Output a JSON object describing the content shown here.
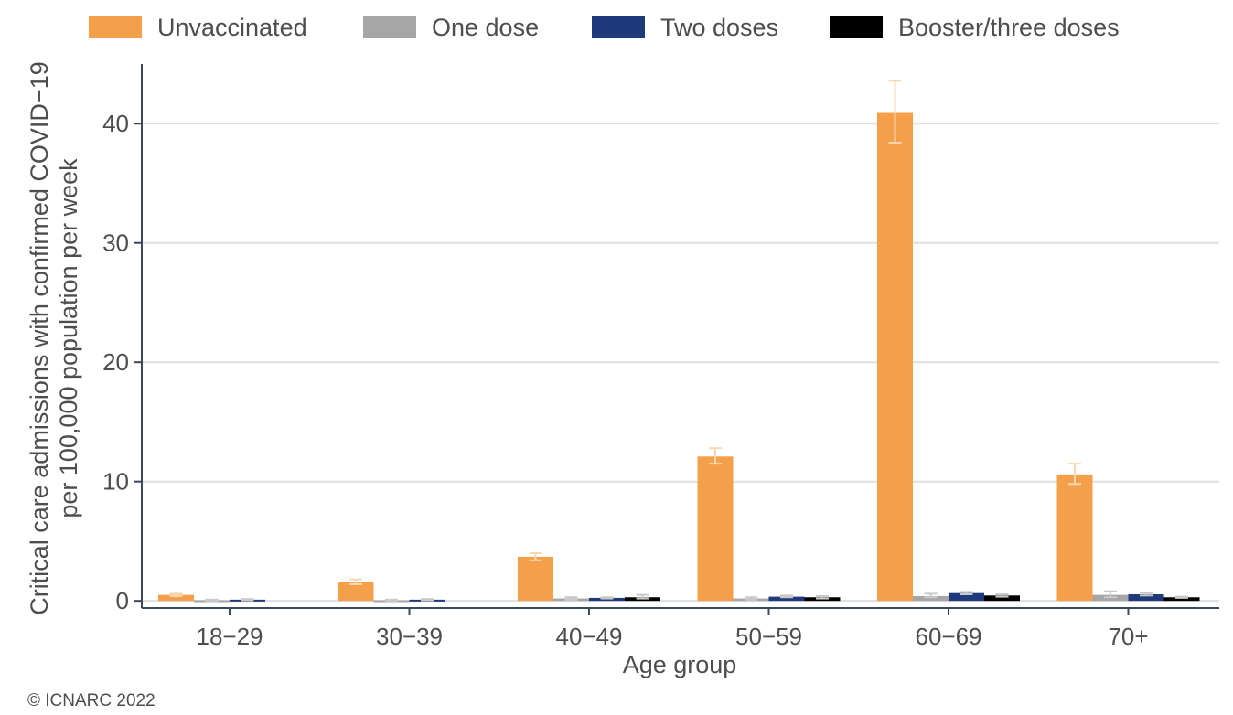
{
  "chart_data": {
    "type": "bar",
    "xlabel": "Age group",
    "ylabel_lines": [
      "Critical care admissions with confirmed COVID−19",
      "per 100,000 population per week"
    ],
    "categories": [
      "18−29",
      "30−39",
      "40−49",
      "50−59",
      "60−69",
      "70+"
    ],
    "series": [
      {
        "name": "Unvaccinated",
        "color": "#f4a04a",
        "values": [
          0.5,
          1.6,
          3.7,
          12.1,
          40.9,
          10.6
        ],
        "err_low": [
          0.4,
          1.4,
          3.4,
          11.5,
          38.4,
          9.8
        ],
        "err_high": [
          0.6,
          1.8,
          4.0,
          12.8,
          43.6,
          11.5
        ]
      },
      {
        "name": "One dose",
        "color": "#a6a6a6",
        "values": [
          0.05,
          0.05,
          0.2,
          0.2,
          0.4,
          0.5
        ],
        "err_low": [
          0.0,
          0.0,
          0.1,
          0.1,
          0.3,
          0.3
        ],
        "err_high": [
          0.1,
          0.1,
          0.3,
          0.3,
          0.6,
          0.8
        ]
      },
      {
        "name": "Two doses",
        "color": "#1f3a7a",
        "values": [
          0.1,
          0.1,
          0.25,
          0.35,
          0.65,
          0.55
        ],
        "err_low": [
          0.05,
          0.05,
          0.2,
          0.3,
          0.55,
          0.45
        ],
        "err_high": [
          0.15,
          0.15,
          0.3,
          0.45,
          0.75,
          0.65
        ]
      },
      {
        "name": "Booster/three doses",
        "color": "#000000",
        "values": [
          null,
          null,
          0.3,
          0.3,
          0.45,
          0.3
        ],
        "err_low": [
          null,
          null,
          0.2,
          0.2,
          0.35,
          0.25
        ],
        "err_high": [
          null,
          null,
          0.5,
          0.4,
          0.55,
          0.35
        ]
      }
    ],
    "yticks": [
      0,
      10,
      20,
      30,
      40
    ],
    "ylim": [
      -0.6,
      45
    ],
    "grid": true,
    "legend_position": "top"
  },
  "footer": {
    "copyright": "© ICNARC 2022"
  }
}
